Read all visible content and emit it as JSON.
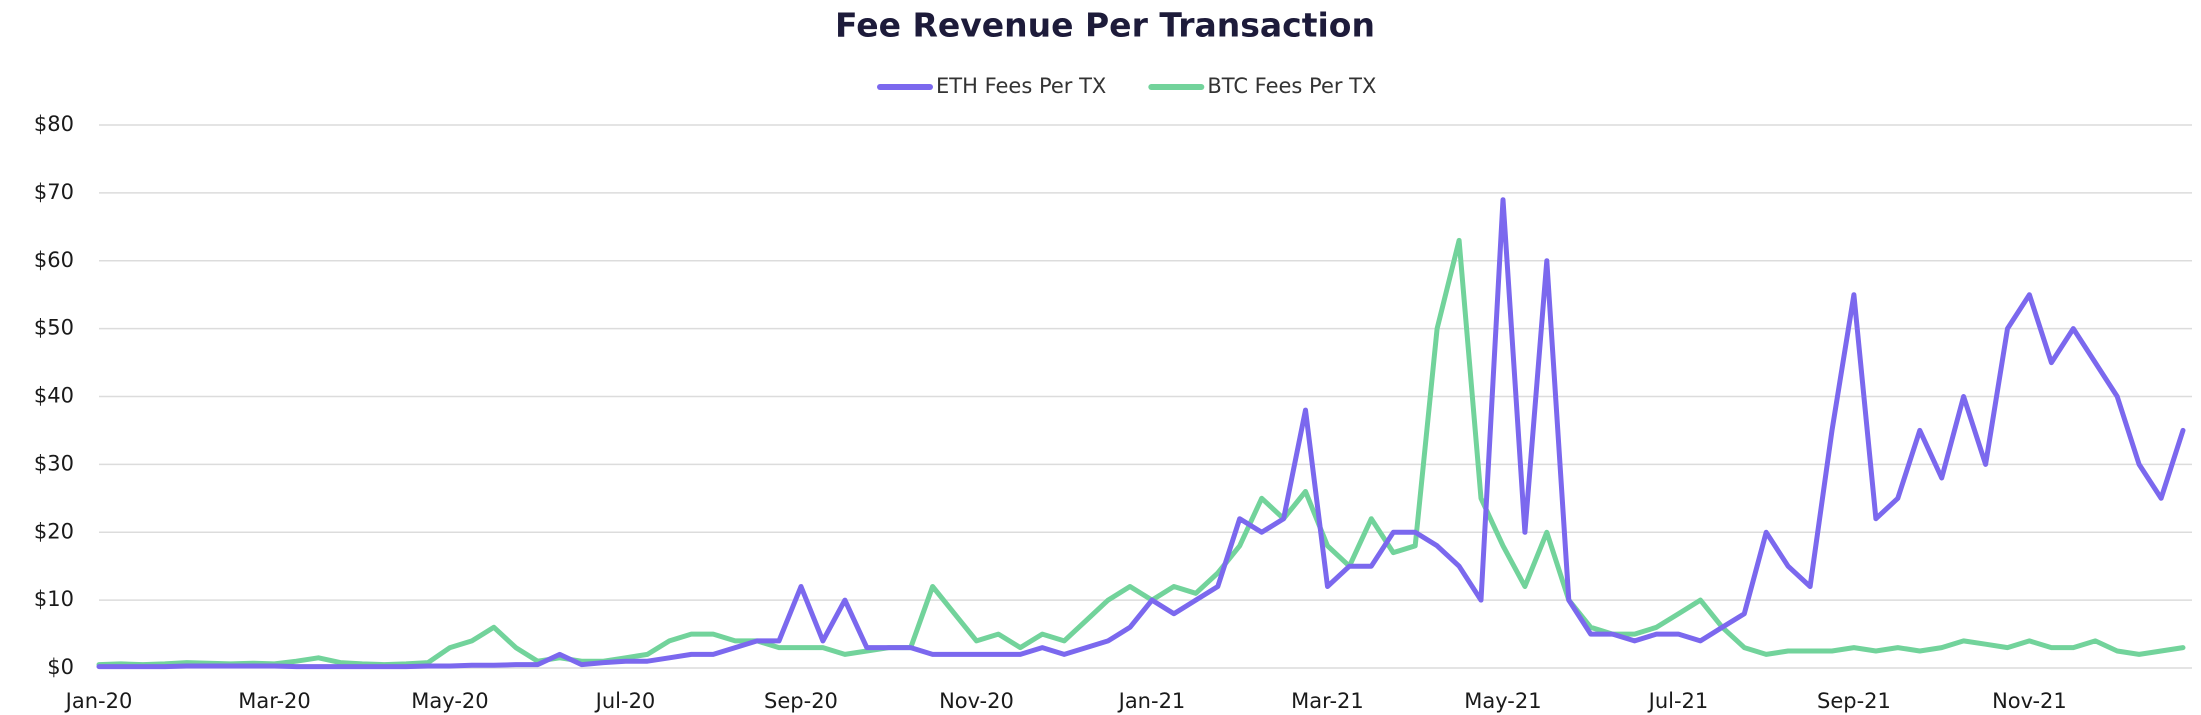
{
  "chart_data": {
    "type": "line",
    "title": "Fee Revenue Per Transaction",
    "categories": [
      "Jan-20",
      null,
      null,
      null,
      null,
      null,
      null,
      null,
      "Mar-20",
      null,
      null,
      null,
      null,
      null,
      null,
      null,
      "May-20",
      null,
      null,
      null,
      null,
      null,
      null,
      null,
      "Jul-20",
      null,
      null,
      null,
      null,
      null,
      null,
      null,
      "Sep-20",
      null,
      null,
      null,
      null,
      null,
      null,
      null,
      "Nov-20",
      null,
      null,
      null,
      null,
      null,
      null,
      null,
      "Jan-21",
      null,
      null,
      null,
      null,
      null,
      null,
      null,
      "Mar-21",
      null,
      null,
      null,
      null,
      null,
      null,
      null,
      "May-21",
      null,
      null,
      null,
      null,
      null,
      null,
      null,
      "Jul-21",
      null,
      null,
      null,
      null,
      null,
      null,
      null,
      "Sep-21",
      null,
      null,
      null,
      null,
      null,
      null,
      null,
      "Nov-21",
      null,
      null,
      null,
      null,
      null,
      null,
      null
    ],
    "series": [
      {
        "name": "ETH Fees Per TX",
        "color": "#7b68ee",
        "values": [
          0.2,
          0.2,
          0.2,
          0.2,
          0.3,
          0.3,
          0.3,
          0.3,
          0.3,
          0.2,
          0.2,
          0.2,
          0.2,
          0.2,
          0.2,
          0.3,
          0.3,
          0.4,
          0.4,
          0.5,
          0.5,
          2,
          0.5,
          0.8,
          1,
          1,
          1.5,
          2,
          2,
          3,
          4,
          4,
          12,
          4,
          10,
          3,
          3,
          3,
          2,
          2,
          2,
          2,
          2,
          3,
          2,
          3,
          4,
          6,
          10,
          8,
          10,
          12,
          22,
          20,
          22,
          38,
          12,
          15,
          15,
          20,
          20,
          18,
          15,
          10,
          69,
          20,
          60,
          10,
          5,
          5,
          4,
          5,
          5,
          4,
          6,
          8,
          20,
          15,
          12,
          35,
          55,
          22,
          25,
          35,
          28,
          40,
          30,
          50,
          55,
          45,
          50,
          45,
          40,
          30,
          25,
          35
        ]
      },
      {
        "name": "BTC Fees Per TX",
        "color": "#72d39b",
        "values": [
          0.5,
          0.6,
          0.5,
          0.6,
          0.8,
          0.7,
          0.6,
          0.7,
          0.6,
          1,
          1.5,
          0.8,
          0.6,
          0.5,
          0.6,
          0.8,
          3,
          4,
          6,
          3,
          1,
          1.5,
          1,
          1,
          1.5,
          2,
          4,
          5,
          5,
          4,
          4,
          3,
          3,
          3,
          2,
          2.5,
          3,
          3,
          12,
          8,
          4,
          5,
          3,
          5,
          4,
          7,
          10,
          12,
          10,
          12,
          11,
          14,
          18,
          25,
          22,
          26,
          18,
          15,
          22,
          17,
          18,
          50,
          63,
          25,
          18,
          12,
          20,
          10,
          6,
          5,
          5,
          6,
          8,
          10,
          6,
          3,
          2,
          2.5,
          2.5,
          2.5,
          3,
          2.5,
          3,
          2.5,
          3,
          4,
          3.5,
          3,
          4,
          3,
          3,
          4,
          2.5,
          2,
          2.5,
          3
        ]
      }
    ],
    "ylim": [
      0,
      80
    ],
    "yticks": [
      {
        "value": 0,
        "label": "$0"
      },
      {
        "value": 10,
        "label": "$10"
      },
      {
        "value": 20,
        "label": "$20"
      },
      {
        "value": 30,
        "label": "$30"
      },
      {
        "value": 40,
        "label": "$40"
      },
      {
        "value": 50,
        "label": "$50"
      },
      {
        "value": 60,
        "label": "$60"
      },
      {
        "value": 70,
        "label": "$70"
      },
      {
        "value": 80,
        "label": "$80"
      }
    ],
    "grid": true,
    "legend": "top"
  }
}
